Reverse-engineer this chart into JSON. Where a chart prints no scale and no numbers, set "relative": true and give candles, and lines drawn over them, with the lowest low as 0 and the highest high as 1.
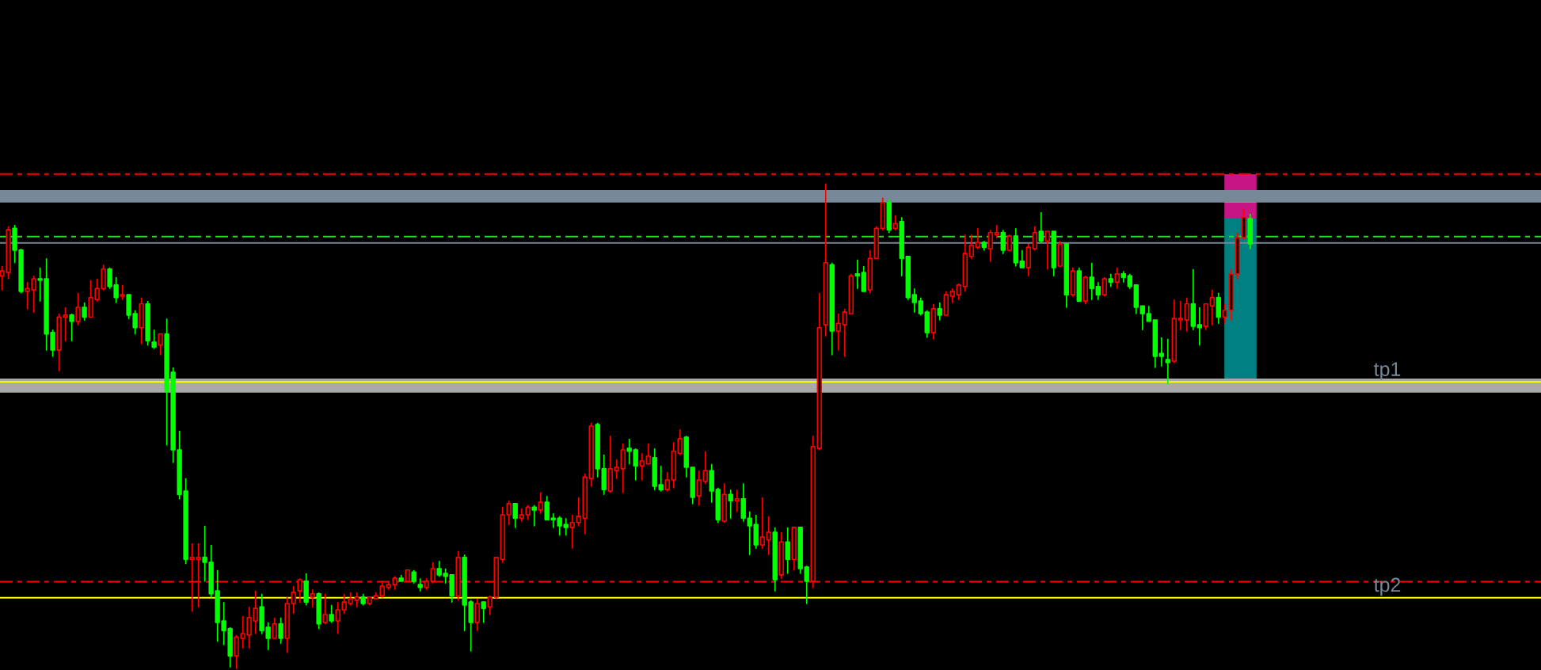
{
  "chart_data": {
    "type": "candlestick",
    "relative": true,
    "categories": [
      null,
      null,
      null,
      null,
      null,
      null,
      null,
      null,
      null,
      null,
      null,
      null,
      null,
      null,
      null,
      null,
      null,
      null,
      null,
      null,
      null,
      null,
      null,
      null,
      null,
      null,
      null,
      null,
      null,
      null,
      null,
      null,
      null,
      null,
      null,
      null,
      null,
      null,
      null,
      null,
      null,
      null,
      null,
      null,
      null,
      null,
      null,
      null,
      null,
      null,
      null,
      null,
      null,
      null,
      null,
      null,
      null,
      null,
      null,
      null,
      null,
      null,
      null,
      null,
      null,
      null,
      null,
      null,
      null,
      null,
      null,
      null,
      null,
      null,
      null,
      null,
      null,
      null,
      null,
      null,
      null,
      null,
      null,
      null,
      null,
      null,
      null,
      null,
      null,
      null,
      null,
      null,
      null,
      null,
      null,
      null,
      null,
      null,
      null,
      null,
      null,
      null,
      null,
      null,
      null,
      null,
      null,
      null,
      null,
      null,
      null,
      null,
      null,
      null,
      null,
      null,
      null,
      null,
      null,
      null,
      null,
      null,
      null,
      null,
      null,
      null,
      null,
      null,
      null,
      null,
      null,
      null,
      null,
      null,
      null,
      null,
      null,
      null,
      null,
      null,
      null,
      null,
      null,
      null,
      null,
      null,
      null,
      null,
      null,
      null,
      null,
      null,
      null,
      null,
      null,
      null,
      null,
      null,
      null,
      null,
      null,
      null,
      null,
      null,
      null,
      null,
      null,
      null,
      null,
      null,
      null,
      null,
      null,
      null,
      null,
      null,
      null,
      null,
      null,
      null,
      null,
      null,
      null,
      null,
      null,
      null,
      null,
      null,
      null,
      null,
      null,
      null,
      null,
      null,
      null,
      null,
      null,
      null
    ],
    "ohlc": [
      [
        0.81,
        0.83,
        0.781,
        0.82
      ],
      [
        0.817,
        0.912,
        0.804,
        0.905
      ],
      [
        0.908,
        0.915,
        0.837,
        0.863
      ],
      [
        0.863,
        0.866,
        0.775,
        0.778
      ],
      [
        0.778,
        0.797,
        0.742,
        0.784
      ],
      [
        0.781,
        0.81,
        0.735,
        0.804
      ],
      [
        0.804,
        0.827,
        0.758,
        0.801
      ],
      [
        0.804,
        0.846,
        0.657,
        0.69
      ],
      [
        0.693,
        0.699,
        0.644,
        0.657
      ],
      [
        0.657,
        0.732,
        0.614,
        0.725
      ],
      [
        0.725,
        0.745,
        0.676,
        0.729
      ],
      [
        0.729,
        0.732,
        0.676,
        0.716
      ],
      [
        0.716,
        0.775,
        0.709,
        0.745
      ],
      [
        0.745,
        0.755,
        0.719,
        0.725
      ],
      [
        0.725,
        0.801,
        0.725,
        0.765
      ],
      [
        0.761,
        0.804,
        0.758,
        0.784
      ],
      [
        0.784,
        0.833,
        0.781,
        0.824
      ],
      [
        0.824,
        0.827,
        0.784,
        0.788
      ],
      [
        0.791,
        0.807,
        0.755,
        0.765
      ],
      [
        0.768,
        0.791,
        0.761,
        0.771
      ],
      [
        0.771,
        0.771,
        0.722,
        0.729
      ],
      [
        0.732,
        0.739,
        0.69,
        0.703
      ],
      [
        0.703,
        0.765,
        0.67,
        0.752
      ],
      [
        0.752,
        0.758,
        0.667,
        0.676
      ],
      [
        0.673,
        0.699,
        0.66,
        0.663
      ],
      [
        0.667,
        0.69,
        0.647,
        0.69
      ],
      [
        0.69,
        0.722,
        0.461,
        0.572
      ],
      [
        0.611,
        0.621,
        0.425,
        0.451
      ],
      [
        0.451,
        0.49,
        0.35,
        0.359
      ],
      [
        0.366,
        0.392,
        0.216,
        0.225
      ],
      [
        0.225,
        0.258,
        0.118,
        0.229
      ],
      [
        0.225,
        0.258,
        0.127,
        0.229
      ],
      [
        0.229,
        0.294,
        0.18,
        0.219
      ],
      [
        0.219,
        0.255,
        0.147,
        0.154
      ],
      [
        0.16,
        0.203,
        0.056,
        0.095
      ],
      [
        0.098,
        0.137,
        0.049,
        0.078
      ],
      [
        0.082,
        0.085,
        0.003,
        0.026
      ],
      [
        0.026,
        0.069,
        0,
        0.065
      ],
      [
        0.062,
        0.108,
        0.042,
        0.072
      ],
      [
        0.069,
        0.127,
        0.042,
        0.105
      ],
      [
        0.098,
        0.16,
        0.072,
        0.124
      ],
      [
        0.127,
        0.154,
        0.072,
        0.078
      ],
      [
        0.085,
        0.095,
        0.039,
        0.062
      ],
      [
        0.062,
        0.105,
        0.062,
        0.092
      ],
      [
        0.092,
        0.105,
        0.052,
        0.062
      ],
      [
        0.062,
        0.147,
        0.033,
        0.134
      ],
      [
        0.134,
        0.17,
        0.114,
        0.157
      ],
      [
        0.16,
        0.186,
        0.137,
        0.183
      ],
      [
        0.18,
        0.196,
        0.131,
        0.137
      ],
      [
        0.147,
        0.163,
        0.127,
        0.154
      ],
      [
        0.154,
        0.157,
        0.082,
        0.092
      ],
      [
        0.095,
        0.154,
        0.092,
        0.111
      ],
      [
        0.111,
        0.131,
        0.095,
        0.098
      ],
      [
        0.098,
        0.137,
        0.072,
        0.121
      ],
      [
        0.121,
        0.154,
        0.114,
        0.137
      ],
      [
        0.134,
        0.157,
        0.131,
        0.144
      ],
      [
        0.141,
        0.157,
        0.127,
        0.147
      ],
      [
        0.147,
        0.154,
        0.131,
        0.134
      ],
      [
        0.134,
        0.147,
        0.131,
        0.147
      ],
      [
        0.144,
        0.157,
        0.144,
        0.15
      ],
      [
        0.15,
        0.18,
        0.147,
        0.17
      ],
      [
        0.167,
        0.18,
        0.163,
        0.173
      ],
      [
        0.173,
        0.19,
        0.163,
        0.186
      ],
      [
        0.186,
        0.193,
        0.18,
        0.18
      ],
      [
        0.18,
        0.203,
        0.18,
        0.203
      ],
      [
        0.199,
        0.203,
        0.176,
        0.18
      ],
      [
        0.173,
        0.186,
        0.16,
        0.167
      ],
      [
        0.167,
        0.186,
        0.163,
        0.18
      ],
      [
        0.18,
        0.219,
        0.176,
        0.206
      ],
      [
        0.206,
        0.222,
        0.19,
        0.193
      ],
      [
        0.196,
        0.206,
        0.176,
        0.19
      ],
      [
        0.193,
        0.193,
        0.137,
        0.15
      ],
      [
        0.15,
        0.242,
        0.141,
        0.229
      ],
      [
        0.229,
        0.235,
        0.078,
        0.131
      ],
      [
        0.137,
        0.141,
        0.036,
        0.095
      ],
      [
        0.095,
        0.144,
        0.078,
        0.134
      ],
      [
        0.137,
        0.137,
        0.095,
        0.124
      ],
      [
        0.127,
        0.15,
        0.111,
        0.147
      ],
      [
        0.147,
        0.229,
        0.144,
        0.229
      ],
      [
        0.225,
        0.333,
        0.219,
        0.317
      ],
      [
        0.317,
        0.346,
        0.297,
        0.34
      ],
      [
        0.34,
        0.34,
        0.291,
        0.31
      ],
      [
        0.31,
        0.33,
        0.304,
        0.317
      ],
      [
        0.317,
        0.337,
        0.307,
        0.333
      ],
      [
        0.333,
        0.337,
        0.294,
        0.327
      ],
      [
        0.327,
        0.363,
        0.32,
        0.343
      ],
      [
        0.343,
        0.356,
        0.307,
        0.307
      ],
      [
        0.31,
        0.32,
        0.291,
        0.307
      ],
      [
        0.31,
        0.314,
        0.275,
        0.294
      ],
      [
        0.297,
        0.31,
        0.275,
        0.291
      ],
      [
        0.291,
        0.317,
        0.248,
        0.301
      ],
      [
        0.301,
        0.353,
        0.294,
        0.314
      ],
      [
        0.31,
        0.402,
        0.278,
        0.395
      ],
      [
        0.392,
        0.507,
        0.376,
        0.5
      ],
      [
        0.503,
        0.507,
        0.395,
        0.412
      ],
      [
        0.412,
        0.441,
        0.359,
        0.369
      ],
      [
        0.366,
        0.48,
        0.363,
        0.412
      ],
      [
        0.408,
        0.431,
        0.392,
        0.415
      ],
      [
        0.412,
        0.464,
        0.363,
        0.451
      ],
      [
        0.454,
        0.474,
        0.422,
        0.448
      ],
      [
        0.451,
        0.454,
        0.389,
        0.418
      ],
      [
        0.418,
        0.444,
        0.389,
        0.428
      ],
      [
        0.422,
        0.464,
        0.422,
        0.438
      ],
      [
        0.435,
        0.454,
        0.369,
        0.376
      ],
      [
        0.379,
        0.418,
        0.366,
        0.369
      ],
      [
        0.369,
        0.405,
        0.366,
        0.389
      ],
      [
        0.389,
        0.467,
        0.373,
        0.448
      ],
      [
        0.444,
        0.493,
        0.441,
        0.474
      ],
      [
        0.477,
        0.48,
        0.395,
        0.415
      ],
      [
        0.415,
        0.415,
        0.34,
        0.353
      ],
      [
        0.356,
        0.408,
        0.337,
        0.389
      ],
      [
        0.386,
        0.448,
        0.382,
        0.408
      ],
      [
        0.408,
        0.422,
        0.343,
        0.366
      ],
      [
        0.369,
        0.373,
        0.301,
        0.307
      ],
      [
        0.304,
        0.382,
        0.301,
        0.359
      ],
      [
        0.359,
        0.369,
        0.31,
        0.346
      ],
      [
        0.346,
        0.369,
        0.324,
        0.35
      ],
      [
        0.35,
        0.382,
        0.304,
        0.31
      ],
      [
        0.31,
        0.324,
        0.235,
        0.294
      ],
      [
        0.297,
        0.317,
        0.248,
        0.255
      ],
      [
        0.255,
        0.353,
        0.248,
        0.271
      ],
      [
        0.265,
        0.314,
        0.235,
        0.281
      ],
      [
        0.281,
        0.291,
        0.16,
        0.183
      ],
      [
        0.193,
        0.281,
        0.186,
        0.261
      ],
      [
        0.261,
        0.291,
        0.196,
        0.225
      ],
      [
        0.225,
        0.291,
        0.203,
        0.291
      ],
      [
        0.291,
        0.291,
        0.196,
        0.206
      ],
      [
        0.209,
        0.212,
        0.134,
        0.18
      ],
      [
        0.18,
        0.48,
        0.167,
        0.458
      ],
      [
        0.454,
        0.775,
        0.451,
        0.703
      ],
      [
        0.709,
        1,
        0.686,
        0.837
      ],
      [
        0.833,
        0.837,
        0.647,
        0.696
      ],
      [
        0.696,
        0.732,
        0.657,
        0.712
      ],
      [
        0.709,
        0.742,
        0.644,
        0.735
      ],
      [
        0.732,
        0.814,
        0.732,
        0.81
      ],
      [
        0.814,
        0.843,
        0.784,
        0.81
      ],
      [
        0.817,
        0.83,
        0.778,
        0.778
      ],
      [
        0.781,
        0.863,
        0.775,
        0.846
      ],
      [
        0.846,
        0.912,
        0.846,
        0.908
      ],
      [
        0.908,
        0.971,
        0.905,
        0.961
      ],
      [
        0.961,
        0.967,
        0.899,
        0.905
      ],
      [
        0.908,
        0.935,
        0.905,
        0.918
      ],
      [
        0.922,
        0.931,
        0.81,
        0.846
      ],
      [
        0.85,
        0.85,
        0.761,
        0.765
      ],
      [
        0.771,
        0.784,
        0.735,
        0.755
      ],
      [
        0.758,
        0.765,
        0.729,
        0.732
      ],
      [
        0.735,
        0.739,
        0.683,
        0.693
      ],
      [
        0.693,
        0.752,
        0.68,
        0.742
      ],
      [
        0.742,
        0.755,
        0.719,
        0.729
      ],
      [
        0.729,
        0.778,
        0.729,
        0.771
      ],
      [
        0.768,
        0.784,
        0.755,
        0.778
      ],
      [
        0.771,
        0.794,
        0.761,
        0.791
      ],
      [
        0.788,
        0.895,
        0.778,
        0.856
      ],
      [
        0.85,
        0.895,
        0.846,
        0.873
      ],
      [
        0.869,
        0.908,
        0.866,
        0.879
      ],
      [
        0.879,
        0.882,
        0.863,
        0.869
      ],
      [
        0.866,
        0.905,
        0.84,
        0.899
      ],
      [
        0.895,
        0.915,
        0.889,
        0.899
      ],
      [
        0.899,
        0.905,
        0.856,
        0.863
      ],
      [
        0.863,
        0.895,
        0.863,
        0.892
      ],
      [
        0.892,
        0.908,
        0.83,
        0.837
      ],
      [
        0.84,
        0.863,
        0.827,
        0.827
      ],
      [
        0.827,
        0.876,
        0.81,
        0.869
      ],
      [
        0.866,
        0.912,
        0.863,
        0.899
      ],
      [
        0.902,
        0.941,
        0.879,
        0.882
      ],
      [
        0.882,
        0.902,
        0.824,
        0.902
      ],
      [
        0.902,
        0.902,
        0.81,
        0.827
      ],
      [
        0.83,
        0.882,
        0.83,
        0.876
      ],
      [
        0.876,
        0.876,
        0.745,
        0.771
      ],
      [
        0.771,
        0.827,
        0.768,
        0.82
      ],
      [
        0.82,
        0.827,
        0.758,
        0.758
      ],
      [
        0.758,
        0.81,
        0.752,
        0.807
      ],
      [
        0.807,
        0.837,
        0.761,
        0.784
      ],
      [
        0.788,
        0.797,
        0.761,
        0.771
      ],
      [
        0.771,
        0.807,
        0.768,
        0.804
      ],
      [
        0.804,
        0.814,
        0.788,
        0.797
      ],
      [
        0.797,
        0.827,
        0.784,
        0.814
      ],
      [
        0.814,
        0.82,
        0.797,
        0.807
      ],
      [
        0.81,
        0.814,
        0.784,
        0.788
      ],
      [
        0.791,
        0.791,
        0.732,
        0.745
      ],
      [
        0.748,
        0.748,
        0.699,
        0.732
      ],
      [
        0.732,
        0.748,
        0.716,
        0.716
      ],
      [
        0.719,
        0.719,
        0.621,
        0.644
      ],
      [
        0.65,
        0.683,
        0.624,
        0.644
      ],
      [
        0.637,
        0.68,
        0.588,
        0.631
      ],
      [
        0.634,
        0.761,
        0.631,
        0.722
      ],
      [
        0.719,
        0.758,
        0.699,
        0.722
      ],
      [
        0.719,
        0.765,
        0.696,
        0.752
      ],
      [
        0.752,
        0.824,
        0.699,
        0.706
      ],
      [
        0.709,
        0.745,
        0.667,
        0.703
      ],
      [
        0.706,
        0.752,
        0.699,
        0.752
      ],
      [
        0.748,
        0.781,
        0.709,
        0.765
      ],
      [
        0.765,
        0.775,
        0.712,
        0.725
      ],
      [
        0.725,
        0.752,
        0.712,
        0.739
      ],
      [
        0.739,
        0.824,
        0.719,
        0.814
      ],
      [
        0.814,
        0.899,
        0.804,
        0.889
      ],
      [
        0.889,
        0.948,
        0.886,
        0.931
      ],
      [
        0.928,
        0.938,
        0.866,
        0.876
      ]
    ],
    "colors": [
      "#ff0000",
      "#ff0000",
      "#00ff00",
      "#00ff00",
      "#ff0000",
      "#ff0000",
      "#00ff00",
      "#00ff00",
      "#00ff00",
      "#ff0000",
      "#ff0000",
      "#00ff00",
      "#ff0000",
      "#00ff00",
      "#ff0000",
      "#ff0000",
      "#ff0000",
      "#00ff00",
      "#00ff00",
      "#ff0000",
      "#00ff00",
      "#00ff00",
      "#ff0000",
      "#00ff00",
      "#00ff00",
      "#ff0000",
      "#00ff00",
      "#00ff00",
      "#00ff00",
      "#00ff00",
      "#ff0000",
      "#ff0000",
      "#00ff00",
      "#00ff00",
      "#00ff00",
      "#00ff00",
      "#00ff00",
      "#ff0000",
      "#ff0000",
      "#ff0000",
      "#ff0000",
      "#00ff00",
      "#00ff00",
      "#ff0000",
      "#00ff00",
      "#ff0000",
      "#ff0000",
      "#ff0000",
      "#00ff00",
      "#ff0000",
      "#00ff00",
      "#ff0000",
      "#00ff00",
      "#ff0000",
      "#ff0000",
      "#ff0000",
      "#ff0000",
      "#00ff00",
      "#ff0000",
      "#ff0000",
      "#ff0000",
      "#ff0000",
      "#ff0000",
      "#00ff00",
      "#ff0000",
      "#00ff00",
      "#00ff00",
      "#ff0000",
      "#ff0000",
      "#00ff00",
      "#00ff00",
      "#00ff00",
      "#ff0000",
      "#00ff00",
      "#00ff00",
      "#ff0000",
      "#00ff00",
      "#ff0000",
      "#ff0000",
      "#ff0000",
      "#ff0000",
      "#00ff00",
      "#ff0000",
      "#ff0000",
      "#00ff00",
      "#ff0000",
      "#00ff00",
      "#00ff00",
      "#00ff00",
      "#00ff00",
      "#ff0000",
      "#ff0000",
      "#ff0000",
      "#ff0000",
      "#00ff00",
      "#00ff00",
      "#ff0000",
      "#ff0000",
      "#ff0000",
      "#00ff00",
      "#00ff00",
      "#ff0000",
      "#ff0000",
      "#00ff00",
      "#00ff00",
      "#ff0000",
      "#ff0000",
      "#ff0000",
      "#00ff00",
      "#00ff00",
      "#ff0000",
      "#ff0000",
      "#00ff00",
      "#00ff00",
      "#ff0000",
      "#00ff00",
      "#ff0000",
      "#00ff00",
      "#00ff00",
      "#00ff00",
      "#ff0000",
      "#ff0000",
      "#00ff00",
      "#ff0000",
      "#00ff00",
      "#ff0000",
      "#00ff00",
      "#00ff00",
      "#ff0000",
      "#ff0000",
      "#ff0000",
      "#00ff00",
      "#ff0000",
      "#ff0000",
      "#ff0000",
      "#00ff00",
      "#00ff00",
      "#ff0000",
      "#ff0000",
      "#ff0000",
      "#00ff00",
      "#ff0000",
      "#00ff00",
      "#00ff00",
      "#00ff00",
      "#00ff00",
      "#00ff00",
      "#ff0000",
      "#00ff00",
      "#ff0000",
      "#ff0000",
      "#ff0000",
      "#ff0000",
      "#ff0000",
      "#ff0000",
      "#00ff00",
      "#ff0000",
      "#ff0000",
      "#00ff00",
      "#ff0000",
      "#00ff00",
      "#00ff00",
      "#ff0000",
      "#ff0000",
      "#00ff00",
      "#ff0000",
      "#00ff00",
      "#ff0000",
      "#00ff00",
      "#ff0000",
      "#00ff00",
      "#ff0000",
      "#00ff00",
      "#00ff00",
      "#ff0000",
      "#00ff00",
      "#ff0000",
      "#00ff00",
      "#00ff00",
      "#00ff00",
      "#00ff00",
      "#00ff00",
      "#00ff00",
      "#00ff00",
      "#00ff00",
      "#ff0000",
      "#ff0000",
      "#ff0000",
      "#00ff00",
      "#00ff00",
      "#ff0000",
      "#ff0000",
      "#00ff00",
      "#ff0000",
      "#ff0000",
      "#ff0000",
      "#ff0000",
      "#00ff00"
    ],
    "bands": [
      {
        "axis": "y",
        "from": 0.961,
        "to": 0.987,
        "color": "#778899"
      },
      {
        "axis": "y",
        "from": 0.569,
        "to": 0.598,
        "color": "#a9a9a9"
      }
    ],
    "ref_lines": [
      {
        "axis": "y",
        "value": 1.02,
        "color": "#ff0000",
        "line_style": "dashdot"
      },
      {
        "axis": "y",
        "value": 0.891,
        "color": "#22dd22",
        "line_style": "dashdot"
      },
      {
        "axis": "y",
        "value": 0.878,
        "color": "#778899",
        "line_style": "solid"
      },
      {
        "axis": "y",
        "value": 0.591,
        "label": "tp1",
        "color": "#ffff00",
        "line_style": "solid"
      },
      {
        "axis": "y",
        "value": 0.179,
        "color": "#ff0000",
        "line_style": "dashdot"
      },
      {
        "axis": "y",
        "value": 0.146,
        "label": "tp2",
        "color": "#ffff00",
        "line_style": "solid"
      }
    ]
  }
}
